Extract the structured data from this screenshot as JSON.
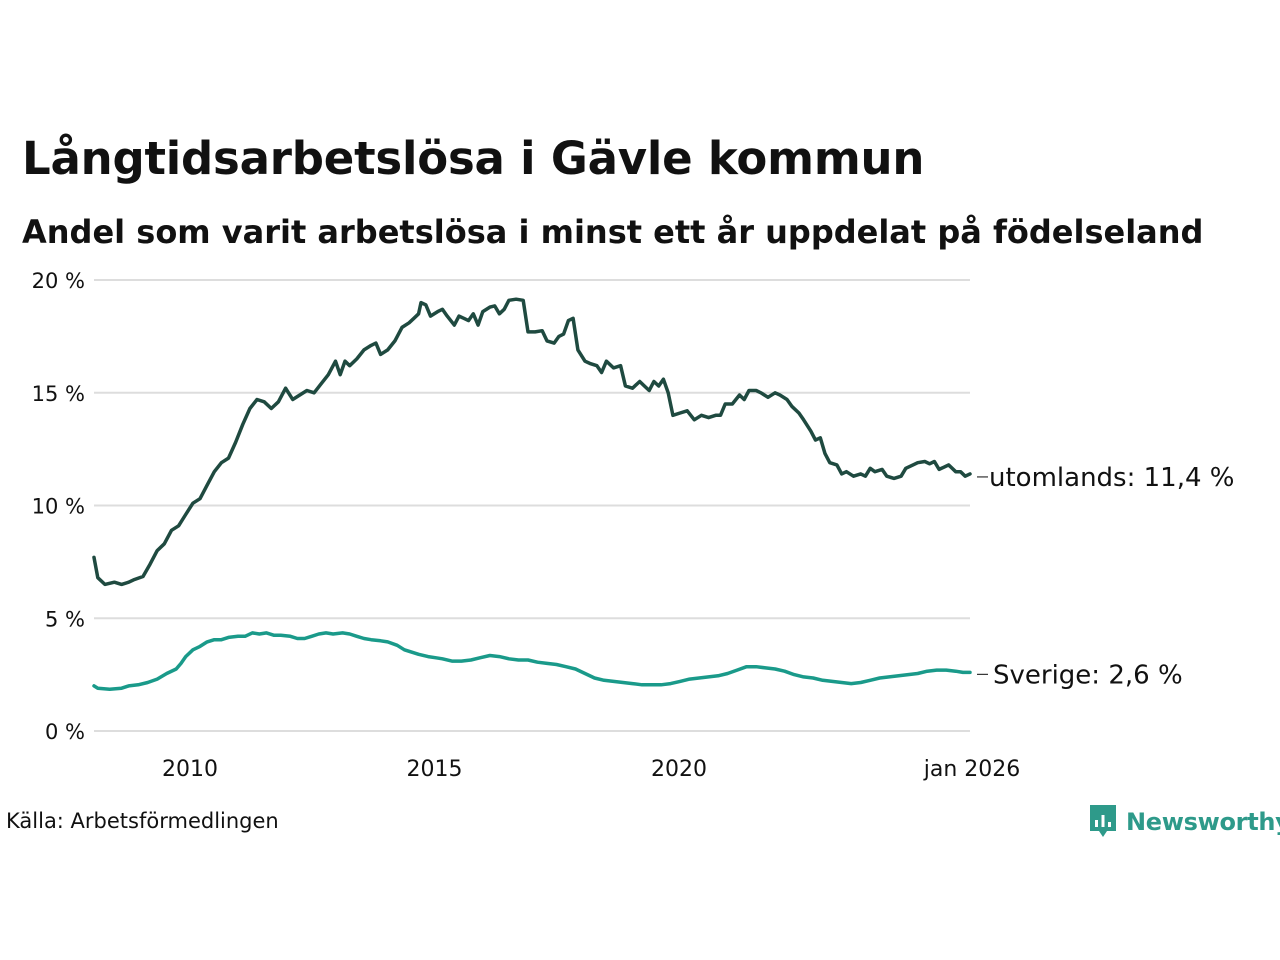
{
  "title": "Långtidsarbetslösa i Gävle kommun",
  "subtitle": "Andel som varit arbetslösa i minst ett år uppdelat på födelseland",
  "source": "Källa: Arbetsförmedlingen",
  "brand": "Newsworthy",
  "colors": {
    "utomlands": "#1f4a40",
    "sverige": "#1a9a8a",
    "grid": "#dddddd",
    "brand": "#2e9a8a"
  },
  "chart_data": {
    "type": "line",
    "title": "Långtidsarbetslösa i Gävle kommun",
    "xlabel": "",
    "ylabel": "",
    "xlim": [
      2008.17,
      2026.0
    ],
    "ylim": [
      0,
      20
    ],
    "y_ticks": [
      {
        "value": 0,
        "label": "0 %"
      },
      {
        "value": 5,
        "label": "5 %"
      },
      {
        "value": 10,
        "label": "10 %"
      },
      {
        "value": 15,
        "label": "15 %"
      },
      {
        "value": 20,
        "label": "20 %"
      }
    ],
    "x_ticks": [
      {
        "value": 2010,
        "label": "2010"
      },
      {
        "value": 2015,
        "label": "2015"
      },
      {
        "value": 2020,
        "label": "2020"
      },
      {
        "value": 2026,
        "label": "jan 2026"
      }
    ],
    "grid": true,
    "series": [
      {
        "name": "utomlands",
        "end_label": "utomlands: 11,4 %",
        "points": [
          [
            2008.17,
            7.7
          ],
          [
            2008.25,
            6.8
          ],
          [
            2008.4,
            6.5
          ],
          [
            2008.6,
            6.6
          ],
          [
            2008.75,
            6.5
          ],
          [
            2008.9,
            6.6
          ],
          [
            2009.0,
            6.7
          ],
          [
            2009.2,
            6.85
          ],
          [
            2009.35,
            7.4
          ],
          [
            2009.5,
            8.0
          ],
          [
            2009.65,
            8.3
          ],
          [
            2009.8,
            8.9
          ],
          [
            2009.95,
            9.1
          ],
          [
            2010.1,
            9.6
          ],
          [
            2010.25,
            10.1
          ],
          [
            2010.4,
            10.3
          ],
          [
            2010.55,
            10.9
          ],
          [
            2010.7,
            11.5
          ],
          [
            2010.85,
            11.9
          ],
          [
            2011.0,
            12.1
          ],
          [
            2011.15,
            12.8
          ],
          [
            2011.3,
            13.6
          ],
          [
            2011.45,
            14.3
          ],
          [
            2011.6,
            14.7
          ],
          [
            2011.75,
            14.6
          ],
          [
            2011.9,
            14.3
          ],
          [
            2012.05,
            14.6
          ],
          [
            2012.2,
            15.2
          ],
          [
            2012.35,
            14.7
          ],
          [
            2012.5,
            14.9
          ],
          [
            2012.65,
            15.1
          ],
          [
            2012.8,
            15.0
          ],
          [
            2012.95,
            15.4
          ],
          [
            2013.1,
            15.8
          ],
          [
            2013.25,
            16.4
          ],
          [
            2013.35,
            15.8
          ],
          [
            2013.45,
            16.4
          ],
          [
            2013.55,
            16.2
          ],
          [
            2013.7,
            16.5
          ],
          [
            2013.85,
            16.9
          ],
          [
            2014.0,
            17.1
          ],
          [
            2014.1,
            17.2
          ],
          [
            2014.2,
            16.7
          ],
          [
            2014.35,
            16.9
          ],
          [
            2014.5,
            17.3
          ],
          [
            2014.65,
            17.9
          ],
          [
            2014.8,
            18.1
          ],
          [
            2014.9,
            18.3
          ],
          [
            2015.0,
            18.5
          ],
          [
            2015.05,
            19.0
          ],
          [
            2015.15,
            18.9
          ],
          [
            2015.25,
            18.4
          ],
          [
            2015.4,
            18.6
          ],
          [
            2015.5,
            18.7
          ],
          [
            2015.6,
            18.4
          ],
          [
            2015.75,
            18.0
          ],
          [
            2015.85,
            18.4
          ],
          [
            2015.95,
            18.3
          ],
          [
            2016.05,
            18.2
          ],
          [
            2016.15,
            18.5
          ],
          [
            2016.25,
            18.0
          ],
          [
            2016.35,
            18.6
          ],
          [
            2016.5,
            18.8
          ],
          [
            2016.6,
            18.85
          ],
          [
            2016.7,
            18.5
          ],
          [
            2016.8,
            18.7
          ],
          [
            2016.9,
            19.1
          ],
          [
            2017.05,
            19.15
          ],
          [
            2017.2,
            19.1
          ],
          [
            2017.3,
            17.7
          ],
          [
            2017.45,
            17.7
          ],
          [
            2017.6,
            17.75
          ],
          [
            2017.7,
            17.3
          ],
          [
            2017.85,
            17.2
          ],
          [
            2017.95,
            17.5
          ],
          [
            2018.05,
            17.6
          ],
          [
            2018.15,
            18.2
          ],
          [
            2018.25,
            18.3
          ],
          [
            2018.35,
            16.9
          ],
          [
            2018.5,
            16.4
          ],
          [
            2018.6,
            16.3
          ],
          [
            2018.75,
            16.2
          ],
          [
            2018.85,
            15.9
          ],
          [
            2018.95,
            16.4
          ],
          [
            2019.1,
            16.1
          ],
          [
            2019.25,
            16.2
          ],
          [
            2019.35,
            15.3
          ],
          [
            2019.5,
            15.2
          ],
          [
            2019.65,
            15.5
          ],
          [
            2019.75,
            15.3
          ],
          [
            2019.85,
            15.1
          ],
          [
            2019.95,
            15.5
          ],
          [
            2020.05,
            15.3
          ],
          [
            2020.15,
            15.6
          ],
          [
            2020.25,
            15.0
          ],
          [
            2020.35,
            14.0
          ],
          [
            2020.5,
            14.1
          ],
          [
            2020.65,
            14.2
          ],
          [
            2020.8,
            13.8
          ],
          [
            2020.95,
            14.0
          ],
          [
            2021.1,
            13.9
          ],
          [
            2021.25,
            14.0
          ],
          [
            2021.35,
            14.0
          ],
          [
            2021.45,
            14.5
          ],
          [
            2021.6,
            14.5
          ],
          [
            2021.75,
            14.9
          ],
          [
            2021.85,
            14.7
          ],
          [
            2021.95,
            15.1
          ],
          [
            2022.1,
            15.1
          ],
          [
            2022.2,
            15.0
          ],
          [
            2022.35,
            14.8
          ],
          [
            2022.5,
            15.0
          ],
          [
            2022.6,
            14.9
          ],
          [
            2022.75,
            14.7
          ],
          [
            2022.85,
            14.4
          ],
          [
            2023.0,
            14.1
          ],
          [
            2023.1,
            13.8
          ],
          [
            2023.25,
            13.3
          ],
          [
            2023.35,
            12.9
          ],
          [
            2023.45,
            13.0
          ],
          [
            2023.55,
            12.3
          ],
          [
            2023.65,
            11.9
          ],
          [
            2023.8,
            11.8
          ],
          [
            2023.9,
            11.4
          ],
          [
            2024.0,
            11.5
          ],
          [
            2024.15,
            11.3
          ],
          [
            2024.3,
            11.4
          ],
          [
            2024.4,
            11.3
          ],
          [
            2024.5,
            11.65
          ],
          [
            2024.6,
            11.5
          ],
          [
            2024.75,
            11.6
          ],
          [
            2024.85,
            11.3
          ],
          [
            2025.0,
            11.2
          ],
          [
            2025.15,
            11.3
          ],
          [
            2025.25,
            11.65
          ],
          [
            2025.4,
            11.8
          ],
          [
            2025.5,
            11.9
          ],
          [
            2025.65,
            11.95
          ],
          [
            2025.75,
            11.85
          ],
          [
            2025.85,
            11.95
          ],
          [
            2025.95,
            11.6
          ],
          [
            2026.05,
            11.7
          ],
          [
            2026.15,
            11.8
          ],
          [
            2026.3,
            11.5
          ],
          [
            2026.4,
            11.5
          ],
          [
            2026.5,
            11.3
          ],
          [
            2026.6,
            11.4
          ]
        ]
      },
      {
        "name": "Sverige",
        "end_label": "Sverige:  2,6 %",
        "points": [
          [
            2008.17,
            2.0
          ],
          [
            2008.25,
            1.9
          ],
          [
            2008.5,
            1.85
          ],
          [
            2008.75,
            1.9
          ],
          [
            2008.9,
            2.0
          ],
          [
            2009.1,
            2.05
          ],
          [
            2009.3,
            2.15
          ],
          [
            2009.5,
            2.3
          ],
          [
            2009.7,
            2.55
          ],
          [
            2009.9,
            2.75
          ],
          [
            2010.0,
            3.0
          ],
          [
            2010.1,
            3.3
          ],
          [
            2010.25,
            3.6
          ],
          [
            2010.4,
            3.75
          ],
          [
            2010.55,
            3.95
          ],
          [
            2010.7,
            4.05
          ],
          [
            2010.85,
            4.05
          ],
          [
            2011.0,
            4.15
          ],
          [
            2011.2,
            4.2
          ],
          [
            2011.35,
            4.2
          ],
          [
            2011.5,
            4.35
          ],
          [
            2011.65,
            4.3
          ],
          [
            2011.8,
            4.35
          ],
          [
            2011.95,
            4.25
          ],
          [
            2012.1,
            4.25
          ],
          [
            2012.3,
            4.2
          ],
          [
            2012.45,
            4.1
          ],
          [
            2012.6,
            4.1
          ],
          [
            2012.75,
            4.2
          ],
          [
            2012.9,
            4.3
          ],
          [
            2013.05,
            4.35
          ],
          [
            2013.2,
            4.3
          ],
          [
            2013.4,
            4.35
          ],
          [
            2013.55,
            4.3
          ],
          [
            2013.7,
            4.2
          ],
          [
            2013.85,
            4.1
          ],
          [
            2014.0,
            4.05
          ],
          [
            2014.2,
            4.0
          ],
          [
            2014.35,
            3.95
          ],
          [
            2014.55,
            3.8
          ],
          [
            2014.7,
            3.6
          ],
          [
            2014.85,
            3.5
          ],
          [
            2015.0,
            3.4
          ],
          [
            2015.2,
            3.3
          ],
          [
            2015.35,
            3.25
          ],
          [
            2015.5,
            3.2
          ],
          [
            2015.7,
            3.1
          ],
          [
            2015.9,
            3.1
          ],
          [
            2016.1,
            3.15
          ],
          [
            2016.3,
            3.25
          ],
          [
            2016.5,
            3.35
          ],
          [
            2016.7,
            3.3
          ],
          [
            2016.9,
            3.2
          ],
          [
            2017.1,
            3.15
          ],
          [
            2017.3,
            3.15
          ],
          [
            2017.5,
            3.05
          ],
          [
            2017.7,
            3.0
          ],
          [
            2017.9,
            2.95
          ],
          [
            2018.1,
            2.85
          ],
          [
            2018.3,
            2.75
          ],
          [
            2018.5,
            2.55
          ],
          [
            2018.7,
            2.35
          ],
          [
            2018.9,
            2.25
          ],
          [
            2019.1,
            2.2
          ],
          [
            2019.3,
            2.15
          ],
          [
            2019.5,
            2.1
          ],
          [
            2019.7,
            2.05
          ],
          [
            2019.9,
            2.05
          ],
          [
            2020.1,
            2.05
          ],
          [
            2020.3,
            2.1
          ],
          [
            2020.5,
            2.2
          ],
          [
            2020.7,
            2.3
          ],
          [
            2020.9,
            2.35
          ],
          [
            2021.1,
            2.4
          ],
          [
            2021.3,
            2.45
          ],
          [
            2021.5,
            2.55
          ],
          [
            2021.7,
            2.7
          ],
          [
            2021.9,
            2.85
          ],
          [
            2022.1,
            2.85
          ],
          [
            2022.3,
            2.8
          ],
          [
            2022.5,
            2.75
          ],
          [
            2022.7,
            2.65
          ],
          [
            2022.9,
            2.5
          ],
          [
            2023.1,
            2.4
          ],
          [
            2023.3,
            2.35
          ],
          [
            2023.5,
            2.25
          ],
          [
            2023.7,
            2.2
          ],
          [
            2023.9,
            2.15
          ],
          [
            2024.1,
            2.1
          ],
          [
            2024.3,
            2.15
          ],
          [
            2024.5,
            2.25
          ],
          [
            2024.7,
            2.35
          ],
          [
            2024.9,
            2.4
          ],
          [
            2025.1,
            2.45
          ],
          [
            2025.3,
            2.5
          ],
          [
            2025.5,
            2.55
          ],
          [
            2025.7,
            2.65
          ],
          [
            2025.9,
            2.7
          ],
          [
            2026.1,
            2.7
          ],
          [
            2026.3,
            2.65
          ],
          [
            2026.45,
            2.6
          ],
          [
            2026.6,
            2.6
          ]
        ]
      }
    ]
  }
}
